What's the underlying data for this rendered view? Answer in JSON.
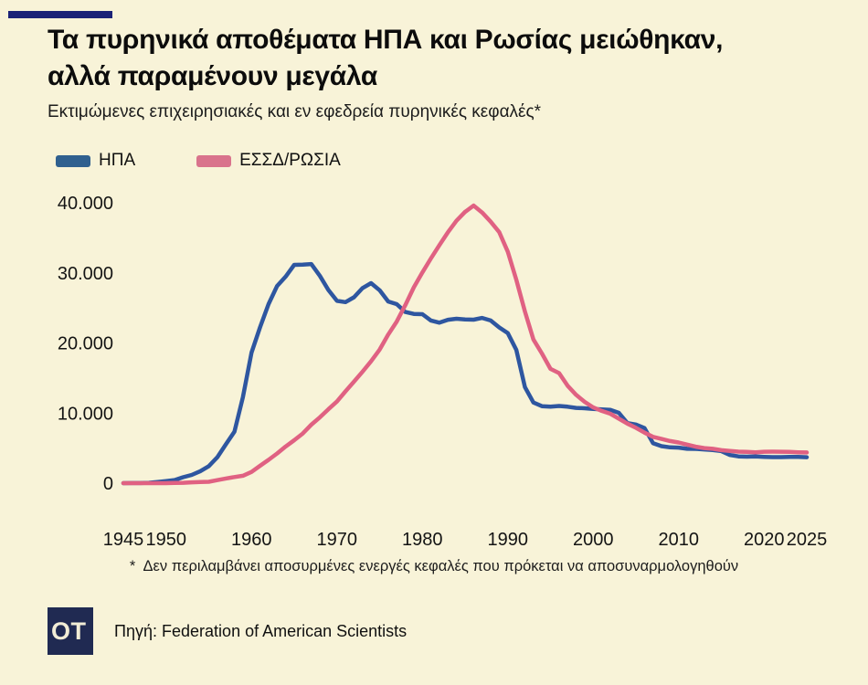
{
  "colors": {
    "background": "#f8f3d8",
    "accent_bar": "#1b2277",
    "logo_bg": "#202a52",
    "us_line": "#2e56a0",
    "ussr_line": "#e06182"
  },
  "header": {
    "title": "Τα πυρηνικά αποθέματα ΗΠΑ και Ρωσίας μειώθηκαν,\nαλλά παραμένουν μεγάλα",
    "subtitle": "Εκτιμώμενες επιχειρησιακές και εν εφεδρεία πυρηνικές κεφαλές*"
  },
  "legend": {
    "items": [
      {
        "label": "ΗΠΑ",
        "color": "#30608f"
      },
      {
        "label": "ΕΣΣΔ/ΡΩΣΙΑ",
        "color": "#d9738c"
      }
    ]
  },
  "chart_data": {
    "type": "line",
    "title": "Τα πυρηνικά αποθέματα ΗΠΑ και Ρωσίας μειώθηκαν, αλλά παραμένουν μεγάλα",
    "subtitle": "Εκτιμώμενες επιχειρησιακές και εν εφεδρεία πυρηνικές κεφαλές*",
    "xlabel": "",
    "ylabel": "",
    "grid": false,
    "legend_position": "top-left",
    "xlim": [
      1945,
      2025
    ],
    "ylim": [
      0,
      40000
    ],
    "years": [
      1945,
      1946,
      1947,
      1948,
      1949,
      1950,
      1951,
      1952,
      1953,
      1954,
      1955,
      1956,
      1957,
      1958,
      1959,
      1960,
      1961,
      1962,
      1963,
      1964,
      1965,
      1966,
      1967,
      1968,
      1969,
      1970,
      1971,
      1972,
      1973,
      1974,
      1975,
      1976,
      1977,
      1978,
      1979,
      1980,
      1981,
      1982,
      1983,
      1984,
      1985,
      1986,
      1987,
      1988,
      1989,
      1990,
      1991,
      1992,
      1993,
      1994,
      1995,
      1996,
      1997,
      1998,
      1999,
      2000,
      2001,
      2002,
      2003,
      2004,
      2005,
      2006,
      2007,
      2008,
      2009,
      2010,
      2011,
      2012,
      2013,
      2014,
      2015,
      2016,
      2017,
      2018,
      2019,
      2020,
      2021,
      2022,
      2023,
      2024,
      2025
    ],
    "series": [
      {
        "name": "ΗΠΑ",
        "color": "#2e56a0",
        "values": [
          2,
          9,
          13,
          50,
          170,
          299,
          438,
          841,
          1169,
          1703,
          2422,
          3692,
          5543,
          7345,
          12298,
          18638,
          22229,
          25540,
          28133,
          29463,
          31139,
          31175,
          31255,
          29561,
          27552,
          26008,
          25830,
          26516,
          27835,
          28537,
          27519,
          25914,
          25542,
          24418,
          24138,
          24104,
          23208,
          22886,
          23305,
          23459,
          23368,
          23317,
          23575,
          23205,
          22217,
          21392,
          19008,
          13708,
          11511,
          10979,
          10904,
          11011,
          10903,
          10732,
          10685,
          10577,
          10526,
          10457,
          10027,
          8570,
          8360,
          7853,
          5709,
          5273,
          5113,
          5066,
          4897,
          4881,
          4804,
          4717,
          4571,
          4018,
          3822,
          3785,
          3805,
          3750,
          3708,
          3708,
          3748,
          3748,
          3700
        ]
      },
      {
        "name": "ΕΣΣΔ/ΡΩΣΙΑ",
        "color": "#e06182",
        "values": [
          0,
          0,
          0,
          0,
          1,
          5,
          25,
          50,
          120,
          150,
          200,
          426,
          660,
          869,
          1060,
          1605,
          2471,
          3322,
          4238,
          5221,
          6129,
          7089,
          8339,
          9399,
          10538,
          11643,
          13092,
          14478,
          15915,
          17385,
          19055,
          21205,
          23044,
          25393,
          27935,
          30062,
          32049,
          33952,
          35804,
          37431,
          38700,
          39600,
          38600,
          37300,
          35800,
          33000,
          29000,
          24500,
          20500,
          18500,
          16300,
          15700,
          13900,
          12600,
          11600,
          10800,
          10300,
          9900,
          9200,
          8500,
          7900,
          7200,
          6600,
          6300,
          6000,
          5800,
          5500,
          5200,
          5000,
          4900,
          4700,
          4600,
          4500,
          4450,
          4400,
          4480,
          4500,
          4480,
          4450,
          4400,
          4380
        ]
      }
    ],
    "x_ticks": [
      {
        "year": 1945,
        "label": "1945"
      },
      {
        "year": 1950,
        "label": "1950"
      },
      {
        "year": 1960,
        "label": "1960"
      },
      {
        "year": 1970,
        "label": "1970"
      },
      {
        "year": 1980,
        "label": "1980"
      },
      {
        "year": 1990,
        "label": "1990"
      },
      {
        "year": 2000,
        "label": "2000"
      },
      {
        "year": 2010,
        "label": "2010"
      },
      {
        "year": 2020,
        "label": "2020"
      },
      {
        "year": 2025,
        "label": "2025"
      }
    ],
    "y_ticks": [
      {
        "value": 0,
        "label": "0"
      },
      {
        "value": 10000,
        "label": "10.000"
      },
      {
        "value": 20000,
        "label": "20.000"
      },
      {
        "value": 30000,
        "label": "30.000"
      },
      {
        "value": 40000,
        "label": "40.000"
      }
    ]
  },
  "footnote": "*  Δεν περιλαμβάνει αποσυρμένες ενεργές κεφαλές που πρόκεται να αποσυναρμολογηθούν",
  "footer": {
    "logo": "OT",
    "source": "Πηγή: Federation of American Scientists"
  }
}
